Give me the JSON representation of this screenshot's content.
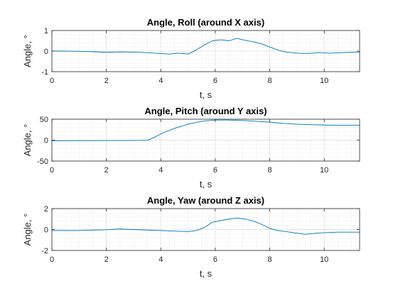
{
  "chart_data": [
    {
      "type": "line",
      "title": "Angle, Roll (around X axis)",
      "xlabel": "t, s",
      "ylabel": "Angle, °",
      "xlim": [
        0,
        11.3
      ],
      "ylim": [
        -1,
        1
      ],
      "xticks": [
        "0",
        "2",
        "4",
        "6",
        "8",
        "10"
      ],
      "yticks": [
        "-1",
        "0",
        "1"
      ],
      "grid": true,
      "minor_grid": true,
      "series": [
        {
          "color": "#0072BD",
          "x": [
            0,
            0.5,
            1,
            1.5,
            2,
            2.5,
            3,
            3.5,
            4,
            4.3,
            4.6,
            5,
            5.3,
            5.6,
            5.9,
            6.2,
            6.5,
            6.8,
            7.1,
            7.4,
            7.7,
            8,
            8.3,
            8.6,
            9,
            9.4,
            9.8,
            10.2,
            10.6,
            11,
            11.3
          ],
          "y": [
            0.0,
            0.0,
            -0.01,
            -0.03,
            -0.06,
            -0.04,
            -0.05,
            -0.08,
            -0.12,
            -0.15,
            -0.1,
            -0.14,
            0.05,
            0.3,
            0.5,
            0.55,
            0.5,
            0.62,
            0.52,
            0.45,
            0.35,
            0.2,
            0.05,
            -0.05,
            -0.1,
            -0.12,
            -0.07,
            -0.1,
            -0.08,
            -0.06,
            -0.05
          ]
        }
      ]
    },
    {
      "type": "line",
      "title": "Angle, Pitch (around Y axis)",
      "xlabel": "t, s",
      "ylabel": "Angle, °",
      "xlim": [
        0,
        11.3
      ],
      "ylim": [
        -50,
        50
      ],
      "xticks": [
        "0",
        "2",
        "4",
        "6",
        "8",
        "10"
      ],
      "yticks": [
        "-50",
        "0",
        "50"
      ],
      "grid": true,
      "minor_grid": true,
      "series": [
        {
          "color": "#0072BD",
          "x": [
            0,
            0.5,
            1,
            1.5,
            2,
            2.5,
            3,
            3.3,
            3.55,
            3.8,
            4.1,
            4.5,
            5,
            5.5,
            6,
            6.5,
            7,
            7.5,
            8,
            8.5,
            9,
            9.5,
            10,
            10.5,
            11,
            11.3
          ],
          "y": [
            -1.5,
            -1.4,
            -1.2,
            -1.1,
            -1.0,
            -0.9,
            -0.7,
            -0.5,
            0.5,
            8,
            18,
            28,
            38,
            45,
            48,
            48,
            47,
            45,
            43,
            40,
            38,
            37,
            36,
            35.5,
            35.5,
            35.5
          ]
        }
      ]
    },
    {
      "type": "line",
      "title": "Angle, Yaw (around Z axis)",
      "xlabel": "t, s",
      "ylabel": "Angle, °",
      "xlim": [
        0,
        11.3
      ],
      "ylim": [
        -2,
        2
      ],
      "xticks": [
        "0",
        "2",
        "4",
        "6",
        "8",
        "10"
      ],
      "yticks": [
        "-2",
        "0",
        "2"
      ],
      "grid": true,
      "minor_grid": true,
      "series": [
        {
          "color": "#0072BD",
          "x": [
            0,
            0.5,
            1,
            1.5,
            2,
            2.5,
            3,
            3.5,
            4,
            4.5,
            5,
            5.3,
            5.6,
            5.9,
            6.2,
            6.5,
            6.8,
            7.1,
            7.4,
            7.7,
            8,
            8.3,
            8.6,
            9,
            9.3,
            9.7,
            10,
            10.5,
            11,
            11.3
          ],
          "y": [
            -0.1,
            -0.1,
            -0.1,
            -0.05,
            -0.02,
            0.05,
            0.0,
            -0.05,
            -0.1,
            -0.15,
            -0.2,
            -0.1,
            0.2,
            0.7,
            0.85,
            1.0,
            1.1,
            1.0,
            0.8,
            0.5,
            0.1,
            -0.1,
            -0.2,
            -0.35,
            -0.45,
            -0.35,
            -0.3,
            -0.25,
            -0.25,
            -0.25
          ]
        }
      ]
    }
  ]
}
